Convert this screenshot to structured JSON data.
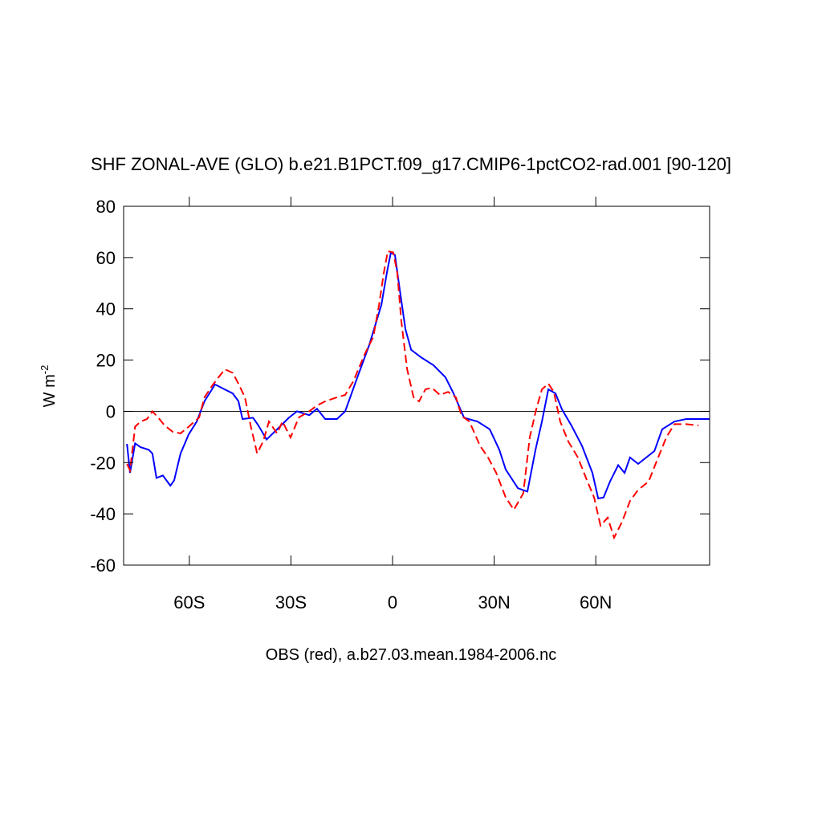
{
  "chart_data": {
    "type": "line",
    "title": "SHF ZONAL-AVE (GLO) b.e21.B1PCT.f09_g17.CMIP6-1pctCO2-rad.001 [90-120]",
    "xlabel": "OBS (red), a.b27.03.mean.1984-2006.nc",
    "ylabel": "W m",
    "ylabel_superscript": "-2",
    "xlim": [
      -79.4,
      93.6
    ],
    "xticks": [
      {
        "value": -60,
        "label": "60S"
      },
      {
        "value": -30,
        "label": "30S"
      },
      0,
      {
        "value": 30,
        "label": "30N"
      },
      {
        "value": 60,
        "label": "60N"
      }
    ],
    "ylim": [
      -60,
      80
    ],
    "yticks": [
      -60,
      -40,
      -20,
      0,
      20,
      40,
      60,
      80
    ],
    "reference_line": 0,
    "series": [
      {
        "color": "#0000ff",
        "dashed": false,
        "x": [
          -78.4,
          -77.5,
          -76,
          -74.4,
          -72,
          -70.9,
          -69.7,
          -67.8,
          -65.6,
          -64.5,
          -62.6,
          -60.2,
          -57.8,
          -55.5,
          -52.4,
          -49.5,
          -47.2,
          -45.5,
          -44.3,
          -41.2,
          -39.6,
          -37.2,
          -34.1,
          -30.6,
          -28.2,
          -24.6,
          -22.3,
          -19.9,
          -16.4,
          -14,
          -10.4,
          -6.9,
          -3.3,
          -1.7,
          -0.5,
          0.7,
          2.1,
          3.8,
          5.5,
          8.5,
          12.1,
          15.6,
          18,
          21.1,
          25.1,
          28.7,
          31.5,
          33.4,
          37,
          39.8,
          42.2,
          44.1,
          46,
          48.1,
          50,
          52.8,
          55.9,
          59,
          60.7,
          62.3,
          64.2,
          66.6,
          68.5,
          70.1,
          72.5,
          74.9,
          77.3,
          79.6,
          83.2,
          86.7,
          90.3,
          93.6
        ],
        "values": [
          -12.7,
          -24,
          -12.5,
          -14,
          -15,
          -16.5,
          -26,
          -25,
          -29,
          -27,
          -16.5,
          -9,
          -4,
          4,
          10.5,
          8.5,
          7,
          4,
          -3,
          -2.5,
          -5.5,
          -11,
          -7,
          -2.5,
          0,
          -1.5,
          1,
          -3,
          -3,
          0,
          13.3,
          25.8,
          41.5,
          54,
          62,
          61,
          47.7,
          32,
          24,
          21,
          18,
          13.3,
          7,
          -2.5,
          -4,
          -7,
          -15,
          -22.7,
          -30,
          -31.3,
          -15,
          -4,
          8.6,
          7,
          0.8,
          -5.5,
          -13.4,
          -24,
          -34,
          -33.6,
          -27.4,
          -21,
          -24,
          -18,
          -20.5,
          -18,
          -15.5,
          -7,
          -4,
          -3,
          -3,
          -3
        ]
      },
      {
        "color": "#ff0000",
        "dashed": true,
        "x": [
          -78.4,
          -77.5,
          -76,
          -74.4,
          -72.5,
          -70.9,
          -69.2,
          -67.3,
          -64.9,
          -62.6,
          -60.2,
          -57.1,
          -55.5,
          -53.1,
          -51.4,
          -49.5,
          -47.2,
          -45.5,
          -43.6,
          -41.9,
          -40,
          -38.2,
          -36.5,
          -34.1,
          -32.5,
          -30.1,
          -27.7,
          -24.6,
          -22.3,
          -19.9,
          -16.4,
          -14,
          -11.6,
          -8.1,
          -5.7,
          -4,
          -2.6,
          -1.4,
          0.2,
          1.4,
          2.6,
          4.3,
          6.2,
          7.8,
          9.7,
          11.6,
          14,
          16.4,
          18.7,
          20.4,
          22.7,
          25.8,
          28.2,
          30.6,
          33.4,
          35.8,
          38.6,
          40.5,
          42.4,
          44.1,
          46,
          47.6,
          49.5,
          51.9,
          54.7,
          57.1,
          59.5,
          61.4,
          63.5,
          65.4,
          67.8,
          70.1,
          72.5,
          75.6,
          78.4,
          80.8,
          83.2,
          86.7,
          90.3
        ],
        "values": [
          -20.5,
          -23,
          -6,
          -4,
          -3,
          0,
          -2.4,
          -5.5,
          -8,
          -8.6,
          -6,
          -2.4,
          5.5,
          10.3,
          13.3,
          16.4,
          15,
          10.8,
          5.5,
          -5.5,
          -16.4,
          -11.8,
          -4,
          -8.6,
          -4,
          -10.2,
          -2.4,
          0,
          2.3,
          3.9,
          5.5,
          6.4,
          11.7,
          22.7,
          29,
          41.5,
          54,
          62.5,
          62,
          54,
          35,
          16.4,
          5.5,
          3.9,
          8.6,
          9.2,
          6.4,
          7.6,
          5.5,
          -1.8,
          -4,
          -13.4,
          -18,
          -24,
          -33.6,
          -38.4,
          -32,
          -10.2,
          0.8,
          8.6,
          10.8,
          7.6,
          -4,
          -11.8,
          -18,
          -26,
          -33.6,
          -44.6,
          -41.5,
          -49.3,
          -43,
          -35,
          -30.6,
          -27.4,
          -18,
          -10.2,
          -5,
          -5,
          -5.5
        ]
      }
    ]
  }
}
